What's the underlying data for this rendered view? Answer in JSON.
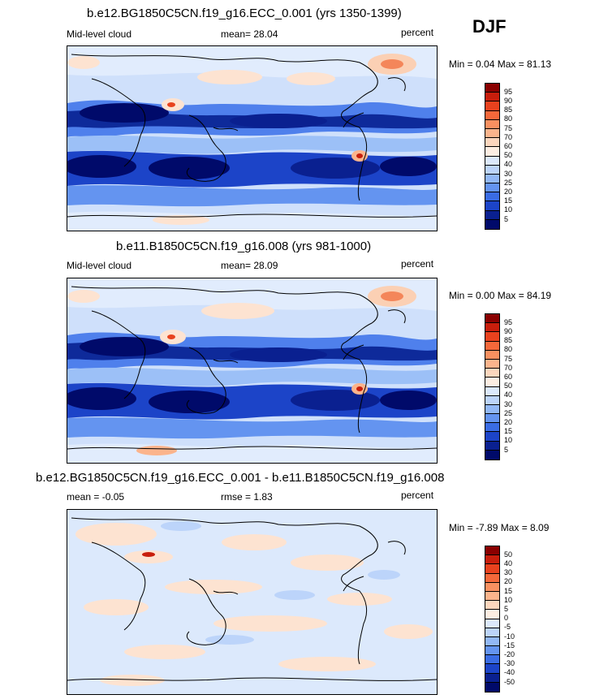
{
  "season": "DJF",
  "panels": [
    {
      "title": "b.e12.BG1850C5CN.f19_g16.ECC_0.001 (yrs 1350-1399)",
      "left_label": "Mid-level cloud",
      "center_label": "mean=  28.04",
      "right_label": "percent",
      "minmax": "Min =  0.04 Max =  81.13",
      "colorbar_labels": [
        "95",
        "90",
        "85",
        "80",
        "75",
        "70",
        "60",
        "50",
        "40",
        "30",
        "25",
        "20",
        "15",
        "10",
        "5"
      ],
      "colorbar_colors": [
        "#8a0000",
        "#c81e0c",
        "#e8421e",
        "#f4683a",
        "#f89060",
        "#fbb48c",
        "#fcd6bd",
        "#fdeee2",
        "#dce9fc",
        "#bcd4fa",
        "#92b8f6",
        "#6494f0",
        "#3a6ce4",
        "#1c44c8",
        "#0a2090",
        "#000a6a"
      ]
    },
    {
      "title": "b.e11.B1850C5CN.f19_g16.008 (yrs 981-1000)",
      "left_label": "Mid-level cloud",
      "center_label": "mean=  28.09",
      "right_label": "percent",
      "minmax": "Min =  0.00 Max =  84.19",
      "colorbar_labels": [
        "95",
        "90",
        "85",
        "80",
        "75",
        "70",
        "60",
        "50",
        "40",
        "30",
        "25",
        "20",
        "15",
        "10",
        "5"
      ],
      "colorbar_colors": [
        "#8a0000",
        "#c81e0c",
        "#e8421e",
        "#f4683a",
        "#f89060",
        "#fbb48c",
        "#fcd6bd",
        "#fdeee2",
        "#dce9fc",
        "#bcd4fa",
        "#92b8f6",
        "#6494f0",
        "#3a6ce4",
        "#1c44c8",
        "#0a2090",
        "#000a6a"
      ]
    },
    {
      "title": "b.e12.BG1850C5CN.f19_g16.ECC_0.001 - b.e11.B1850C5CN.f19_g16.008",
      "left_label": "mean =  -0.05",
      "center_label": "rmse =   1.83",
      "right_label": "percent",
      "minmax": "Min =  -7.89 Max =   8.09",
      "colorbar_labels": [
        "50",
        "40",
        "30",
        "20",
        "15",
        "10",
        "5",
        "0",
        "-5",
        "-10",
        "-15",
        "-20",
        "-30",
        "-40",
        "-50"
      ],
      "colorbar_colors": [
        "#8a0000",
        "#c81e0c",
        "#e8421e",
        "#f4683a",
        "#f89060",
        "#fbb48c",
        "#fcd6bd",
        "#fdeee2",
        "#dce9fc",
        "#bcd4fa",
        "#92b8f6",
        "#6494f0",
        "#3a6ce4",
        "#1c44c8",
        "#0a2090",
        "#000a6a"
      ]
    }
  ]
}
